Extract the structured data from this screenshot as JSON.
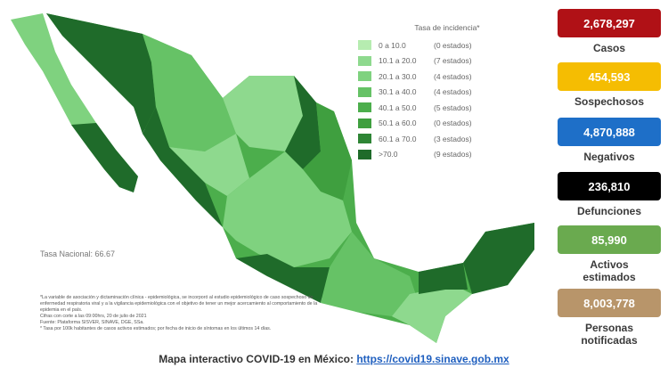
{
  "legend": {
    "title": "Tasa de incidencia*",
    "items": [
      {
        "range": "0 a 10.0",
        "count": "(0 estados)",
        "color": "#b6ecb0"
      },
      {
        "range": "10.1 a 20.0",
        "count": "(7 estados)",
        "color": "#8ed98e"
      },
      {
        "range": "20.1 a 30.0",
        "count": "(4 estados)",
        "color": "#7fd27f"
      },
      {
        "range": "30.1 a 40.0",
        "count": "(4 estados)",
        "color": "#66c266"
      },
      {
        "range": "40.1 a 50.0",
        "count": "(5 estados)",
        "color": "#4cae4c"
      },
      {
        "range": "50.1 a 60.0",
        "count": "(0 estados)",
        "color": "#3f9f3f"
      },
      {
        "range": "60.1 a 70.0",
        "count": "(3 estados)",
        "color": "#2e8535"
      },
      {
        "range": ">70.0",
        "count": "(9 estados)",
        "color": "#1f6b2a"
      }
    ]
  },
  "national_rate": "Tasa Nacional: 66.67",
  "footnotes": [
    "*La variable de asociación y dictaminación clínica - epidemiológica, se incorporó al estudio epidemiológico de caso sospechoso de enfermedad respiratoria viral y a la vigilancia epidemiológica con el objetivo de tener un mejor acercamiento al comportamiento de la epidemia en el país.",
    "Cifras con corte a las 09:00hrs, 20 de julio de 2021",
    "Fuente: Plataforma SISVER, SINAVE, DGE, SSa.",
    "* Tasa por 100k habitantes de casos activos estimados; por fecha de inicio de síntomas en los últimos 14 días."
  ],
  "stats": [
    {
      "value": "2,678,297",
      "label": "Casos",
      "color": "#b01116"
    },
    {
      "value": "454,593",
      "label": "Sospechosos",
      "color": "#f5bd02"
    },
    {
      "value": "4,870,888",
      "label": "Negativos",
      "color": "#1e6fc8"
    },
    {
      "value": "236,810",
      "label": "Defunciones",
      "color": "#000000"
    },
    {
      "value": "85,990",
      "label": "Activos estimados",
      "color": "#6aaa4f"
    },
    {
      "value": "8,003,778",
      "label": "Personas notificadas",
      "color": "#b8956a"
    }
  ],
  "footer": {
    "text": "Mapa interactivo COVID-19 en México:",
    "link": "https://covid19.sinave.gob.mx"
  }
}
